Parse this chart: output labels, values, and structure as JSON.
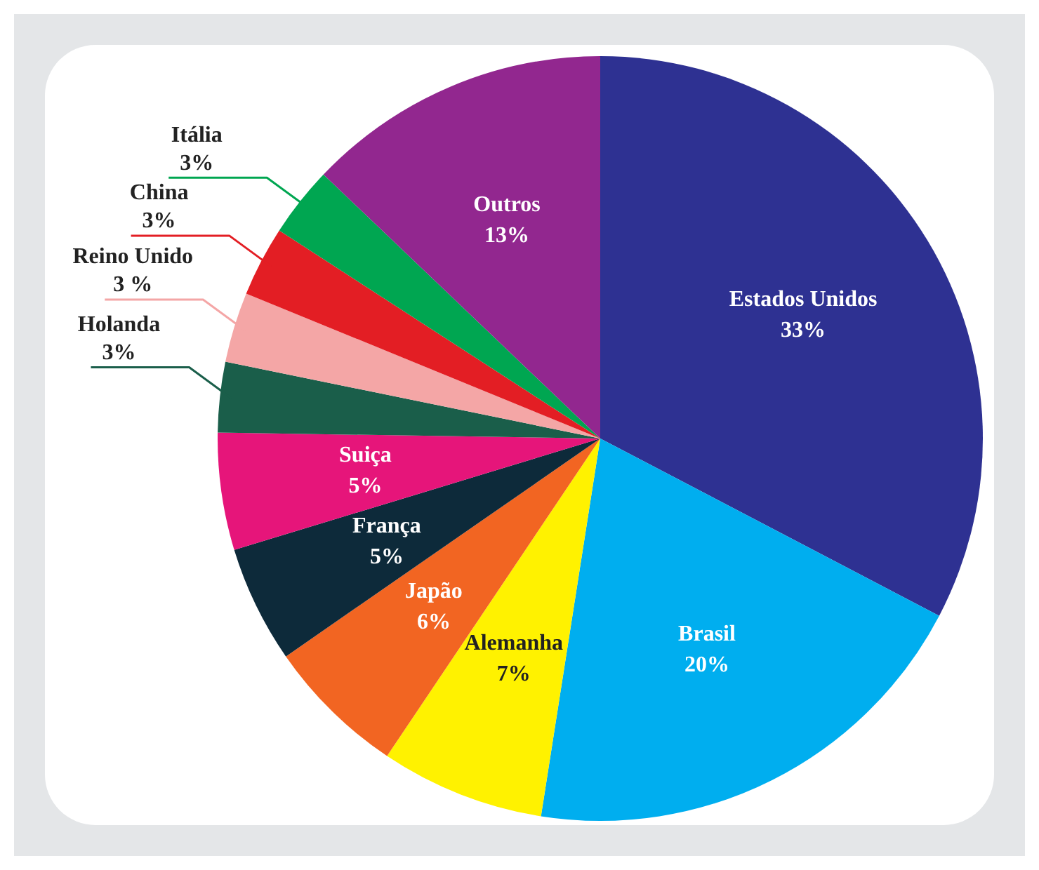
{
  "chart_data": {
    "type": "pie",
    "categories": [
      "Estados Unidos",
      "Brasil",
      "Alemanha",
      "Japão",
      "França",
      "Suiça",
      "Holanda",
      "Reino Unido",
      "China",
      "Itália",
      "Outros"
    ],
    "values": [
      33,
      20,
      7,
      6,
      5,
      5,
      3,
      3,
      3,
      3,
      13
    ],
    "colors": [
      "#2e3192",
      "#00aeef",
      "#fff200",
      "#f26522",
      "#0d2a3a",
      "#e6157a",
      "#1a5e4a",
      "#f4a6a6",
      "#e31e24",
      "#00a651",
      "#92278f"
    ],
    "value_labels": [
      "33%",
      "20%",
      "7%",
      "6%",
      "5%",
      "5%",
      "3%",
      "3 %",
      "3%",
      "3%",
      "13%"
    ],
    "legend": false
  }
}
